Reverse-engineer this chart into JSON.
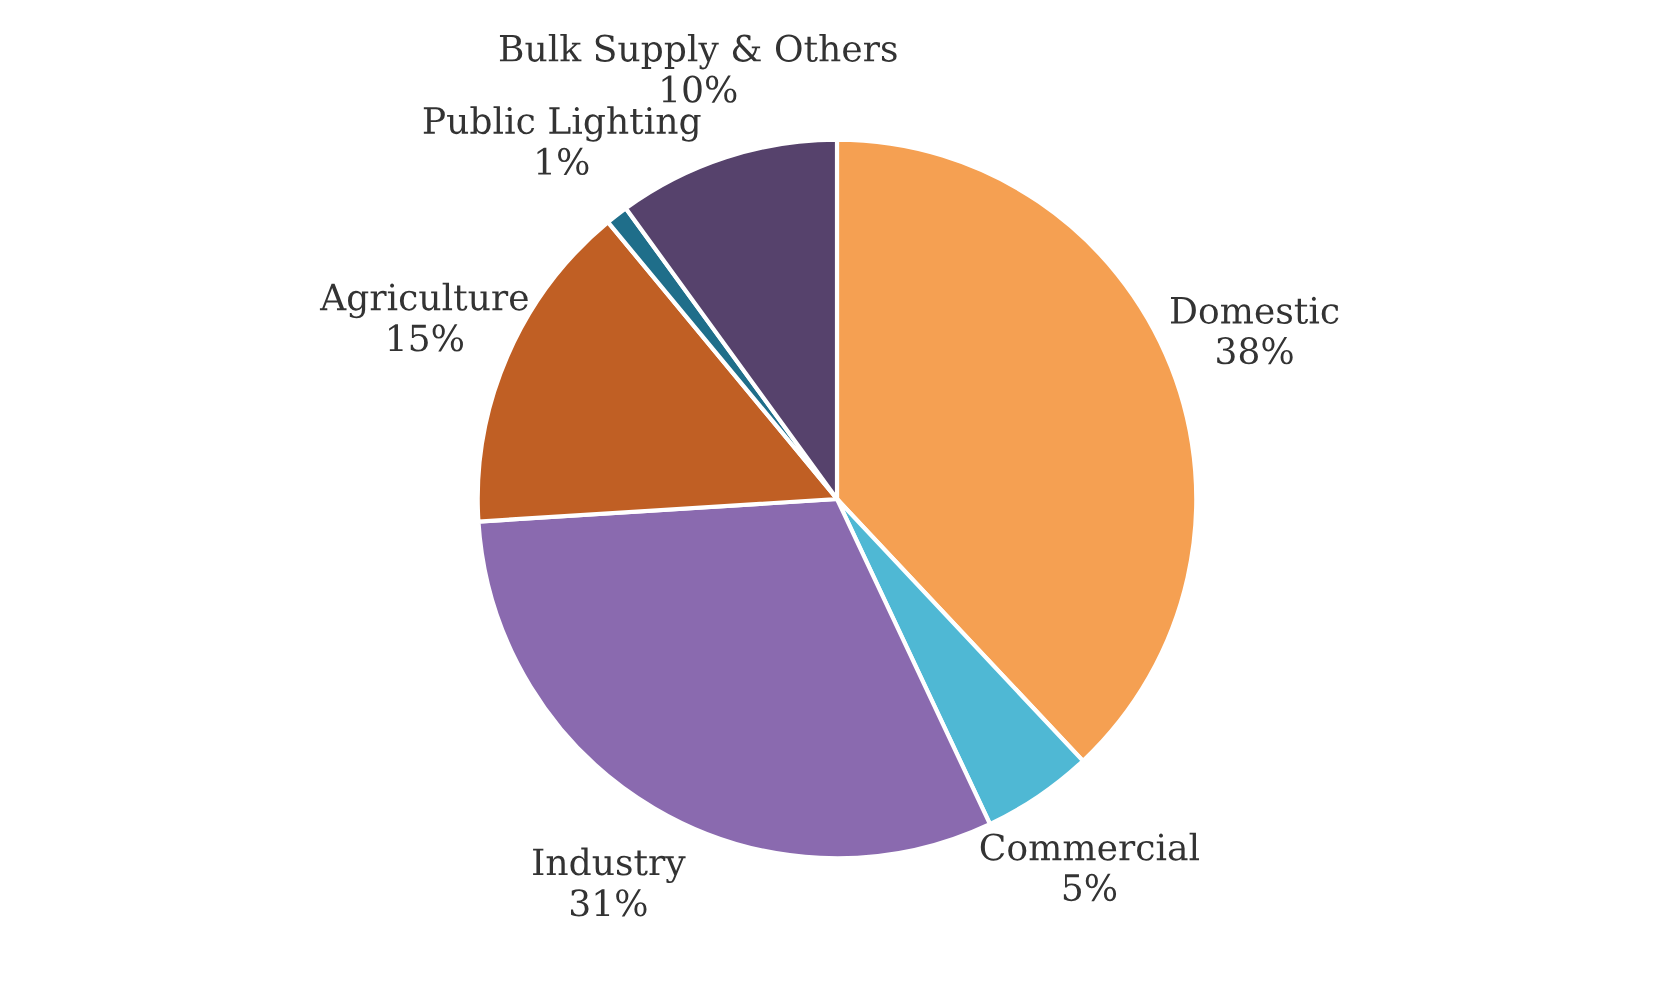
{
  "chart_data": {
    "type": "pie",
    "categories": [
      "Domestic",
      "Commercial",
      "Industry",
      "Agriculture",
      "Public Lighting",
      "Bulk Supply & Others"
    ],
    "values": [
      38,
      5,
      31,
      15,
      1,
      10
    ],
    "value_labels": [
      "38%",
      "5%",
      "31%",
      "15%",
      "1%",
      "10%"
    ],
    "colors": [
      "#f5a052",
      "#4fb8d4",
      "#8a6aaf",
      "#c05f24",
      "#1f6e8a",
      "#56426c"
    ],
    "legend": false
  }
}
